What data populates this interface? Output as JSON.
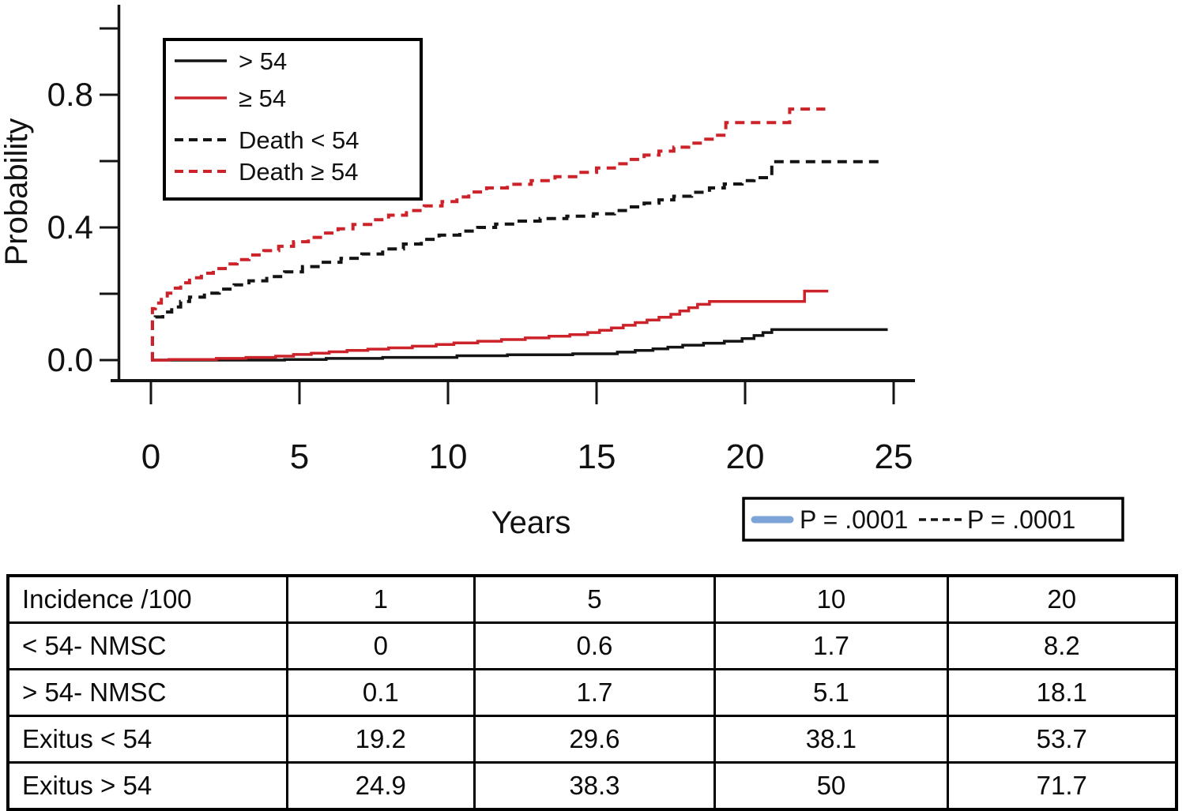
{
  "figure": {
    "background": "#ffffff",
    "accent_red": "#cc2229",
    "accent_blue": "#7da4d8",
    "line_black": "#141414"
  },
  "chart_data": {
    "type": "line",
    "subtype": "cumulative-incidence-step-curves",
    "title": "",
    "xlabel": "Years",
    "ylabel": "Probability",
    "xlim": [
      0,
      25.7
    ],
    "ylim": [
      0,
      1.0
    ],
    "grid": false,
    "legend_position": "upper-left",
    "x_ticks": [
      0,
      5,
      10,
      15,
      20,
      25
    ],
    "x_tick_labels": [
      "0",
      "5",
      "10",
      "15",
      "20",
      "25"
    ],
    "y_ticks": [
      0,
      0.2,
      0.4,
      0.6,
      0.8,
      1.0
    ],
    "y_tick_labels": [
      "0.0",
      "",
      "0.4",
      "",
      "0.8",
      ""
    ],
    "series": [
      {
        "name": "> 54",
        "color": "black",
        "style": "solid",
        "end_t": 24.8,
        "points": [
          [
            0,
            0
          ],
          [
            4.5,
            0.002
          ],
          [
            5.9,
            0.005
          ],
          [
            7.8,
            0.008
          ],
          [
            10.3,
            0.013
          ],
          [
            12.0,
            0.016
          ],
          [
            14.2,
            0.019
          ],
          [
            15.7,
            0.024
          ],
          [
            16.3,
            0.029
          ],
          [
            16.9,
            0.034
          ],
          [
            17.4,
            0.039
          ],
          [
            17.9,
            0.045
          ],
          [
            18.6,
            0.051
          ],
          [
            19.3,
            0.057
          ],
          [
            19.9,
            0.065
          ],
          [
            20.3,
            0.074
          ],
          [
            20.6,
            0.083
          ],
          [
            20.9,
            0.092
          ]
        ]
      },
      {
        "name": "≥ 54",
        "color": "red",
        "style": "solid",
        "end_t": 22.8,
        "points": [
          [
            0,
            0
          ],
          [
            0.6,
            0.002
          ],
          [
            2.2,
            0.005
          ],
          [
            3.2,
            0.008
          ],
          [
            4.2,
            0.012
          ],
          [
            4.8,
            0.017
          ],
          [
            5.4,
            0.021
          ],
          [
            6.0,
            0.025
          ],
          [
            6.6,
            0.029
          ],
          [
            7.3,
            0.033
          ],
          [
            8.0,
            0.037
          ],
          [
            8.8,
            0.042
          ],
          [
            9.6,
            0.047
          ],
          [
            10.2,
            0.052
          ],
          [
            11.0,
            0.057
          ],
          [
            11.8,
            0.062
          ],
          [
            12.6,
            0.067
          ],
          [
            13.4,
            0.072
          ],
          [
            14.1,
            0.077
          ],
          [
            14.7,
            0.083
          ],
          [
            15.1,
            0.09
          ],
          [
            15.5,
            0.097
          ],
          [
            15.9,
            0.105
          ],
          [
            16.3,
            0.113
          ],
          [
            16.7,
            0.121
          ],
          [
            17.1,
            0.129
          ],
          [
            17.5,
            0.138
          ],
          [
            17.8,
            0.148
          ],
          [
            18.1,
            0.158
          ],
          [
            18.4,
            0.168
          ],
          [
            18.8,
            0.177
          ],
          [
            22.0,
            0.208
          ]
        ]
      },
      {
        "name": "Death < 54",
        "color": "black",
        "style": "dashed",
        "end_t": 24.7,
        "points": [
          [
            0,
            0
          ],
          [
            0.05,
            0.115
          ],
          [
            0.15,
            0.13
          ],
          [
            0.4,
            0.145
          ],
          [
            0.7,
            0.16
          ],
          [
            1.0,
            0.177
          ],
          [
            1.3,
            0.19
          ],
          [
            1.8,
            0.202
          ],
          [
            2.3,
            0.214
          ],
          [
            2.8,
            0.227
          ],
          [
            3.3,
            0.239
          ],
          [
            3.9,
            0.252
          ],
          [
            4.5,
            0.266
          ],
          [
            5.1,
            0.282
          ],
          [
            5.7,
            0.295
          ],
          [
            6.4,
            0.307
          ],
          [
            7.1,
            0.32
          ],
          [
            7.8,
            0.335
          ],
          [
            8.5,
            0.35
          ],
          [
            9.1,
            0.364
          ],
          [
            9.7,
            0.377
          ],
          [
            10.4,
            0.389
          ],
          [
            11.0,
            0.4
          ],
          [
            11.6,
            0.41
          ],
          [
            12.3,
            0.419
          ],
          [
            13.1,
            0.427
          ],
          [
            14.0,
            0.434
          ],
          [
            14.9,
            0.441
          ],
          [
            15.6,
            0.451
          ],
          [
            16.1,
            0.462
          ],
          [
            16.6,
            0.473
          ],
          [
            17.1,
            0.483
          ],
          [
            17.6,
            0.494
          ],
          [
            18.2,
            0.506
          ],
          [
            18.8,
            0.519
          ],
          [
            19.3,
            0.531
          ],
          [
            19.9,
            0.541
          ],
          [
            20.3,
            0.55
          ],
          [
            20.9,
            0.598
          ]
        ]
      },
      {
        "name": "Death ≥ 54",
        "color": "red",
        "style": "dashed",
        "end_t": 22.7,
        "points": [
          [
            0,
            0
          ],
          [
            0.05,
            0.155
          ],
          [
            0.15,
            0.172
          ],
          [
            0.35,
            0.188
          ],
          [
            0.55,
            0.202
          ],
          [
            0.75,
            0.217
          ],
          [
            1.0,
            0.233
          ],
          [
            1.3,
            0.248
          ],
          [
            1.7,
            0.262
          ],
          [
            2.1,
            0.276
          ],
          [
            2.5,
            0.29
          ],
          [
            2.9,
            0.303
          ],
          [
            3.3,
            0.317
          ],
          [
            3.8,
            0.33
          ],
          [
            4.3,
            0.343
          ],
          [
            4.8,
            0.357
          ],
          [
            5.3,
            0.37
          ],
          [
            5.8,
            0.383
          ],
          [
            6.3,
            0.396
          ],
          [
            6.8,
            0.409
          ],
          [
            7.4,
            0.423
          ],
          [
            8.0,
            0.437
          ],
          [
            8.6,
            0.451
          ],
          [
            9.2,
            0.465
          ],
          [
            9.8,
            0.478
          ],
          [
            10.3,
            0.492
          ],
          [
            10.7,
            0.507
          ],
          [
            11.3,
            0.519
          ],
          [
            12.0,
            0.53
          ],
          [
            12.8,
            0.541
          ],
          [
            13.6,
            0.553
          ],
          [
            14.4,
            0.566
          ],
          [
            15.0,
            0.579
          ],
          [
            15.6,
            0.592
          ],
          [
            16.1,
            0.605
          ],
          [
            16.6,
            0.618
          ],
          [
            17.1,
            0.63
          ],
          [
            17.6,
            0.642
          ],
          [
            18.1,
            0.654
          ],
          [
            18.6,
            0.666
          ],
          [
            19.0,
            0.678
          ],
          [
            19.35,
            0.716
          ],
          [
            21.5,
            0.757
          ]
        ]
      }
    ],
    "pvalue_box": {
      "solid_label": "P = .0001",
      "dashed_label": "P = .0001"
    }
  },
  "table": {
    "header": {
      "label": "Incidence /100",
      "columns": [
        "1",
        "5",
        "10",
        "20"
      ]
    },
    "rows": [
      {
        "label": "< 54- NMSC",
        "values": [
          "0",
          "0.6",
          "1.7",
          "8.2"
        ]
      },
      {
        "label": "> 54- NMSC",
        "values": [
          "0.1",
          "1.7",
          "5.1",
          "18.1"
        ]
      },
      {
        "label": "Exitus < 54",
        "values": [
          "19.2",
          "29.6",
          "38.1",
          "53.7"
        ]
      },
      {
        "label": "Exitus > 54",
        "values": [
          "24.9",
          "38.3",
          "50",
          "71.7"
        ]
      }
    ]
  }
}
